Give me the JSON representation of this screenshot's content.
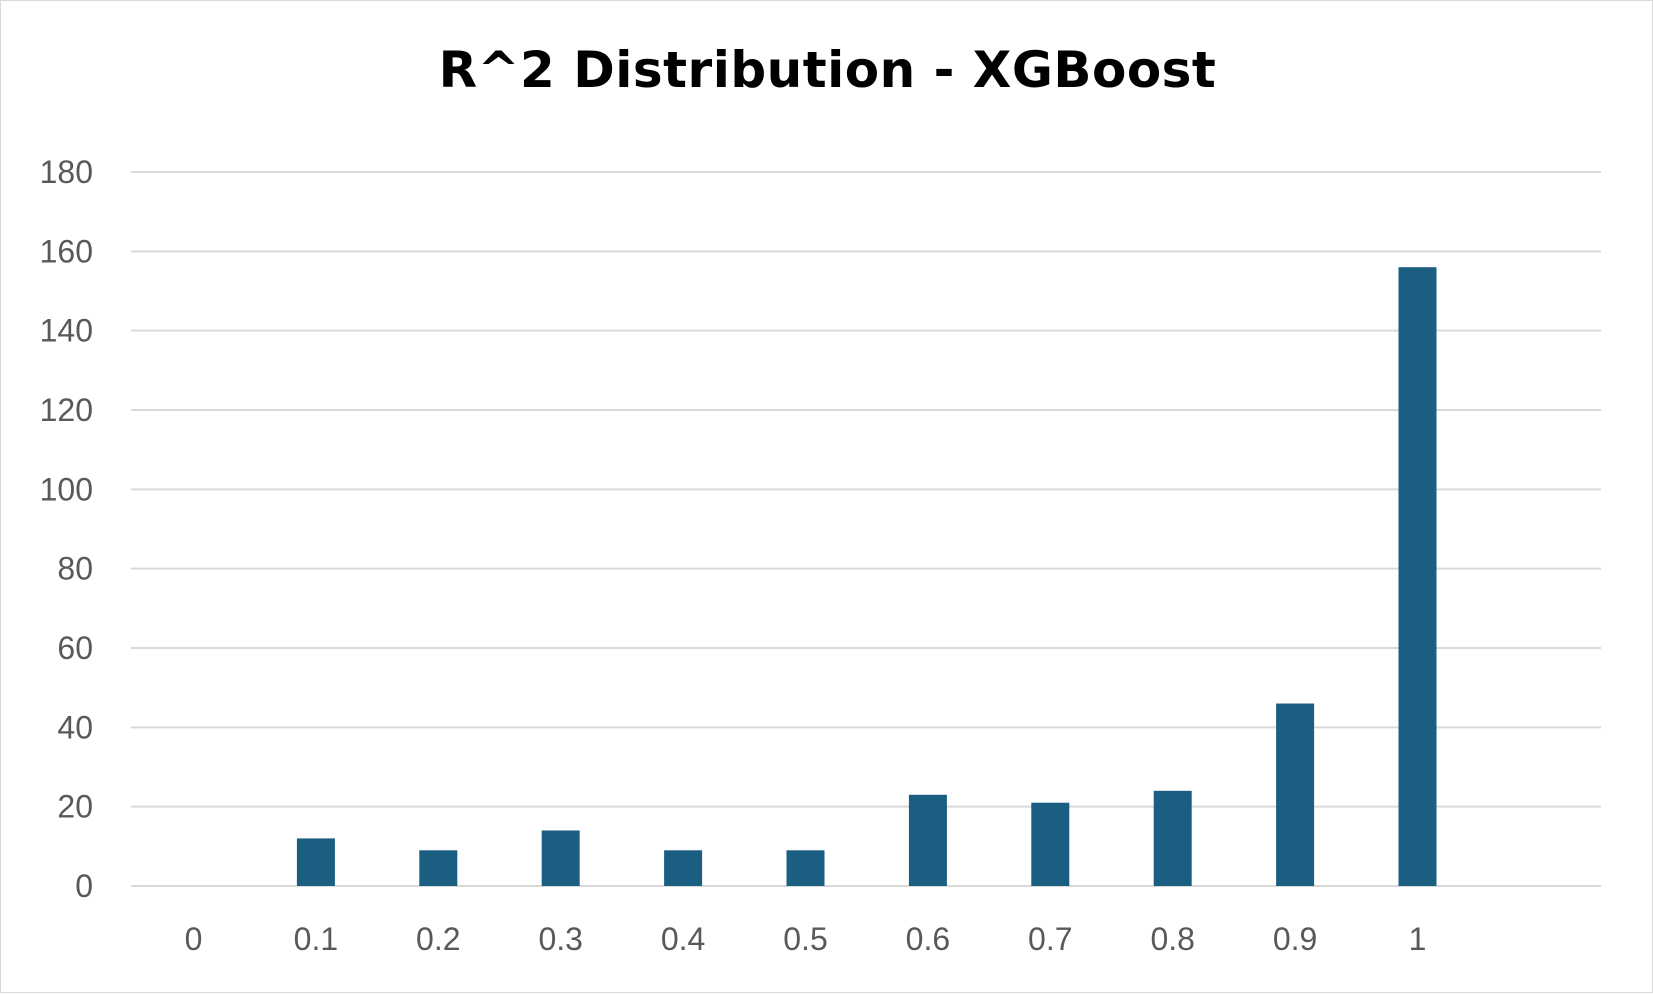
{
  "chart_data": {
    "type": "bar",
    "title": "R^2 Distribution - XGBoost",
    "xlabel": "",
    "ylabel": "",
    "categories": [
      "0",
      "0.1",
      "0.2",
      "0.3",
      "0.4",
      "0.5",
      "0.6",
      "0.7",
      "0.8",
      "0.9",
      "1"
    ],
    "values": [
      0,
      12,
      9,
      14,
      9,
      9,
      23,
      21,
      24,
      46,
      156
    ],
    "ylim": [
      0,
      180
    ],
    "yticks": [
      "0",
      "20",
      "40",
      "60",
      "80",
      "100",
      "120",
      "140",
      "160",
      "180"
    ],
    "grid": true,
    "legend": "none",
    "bar_color": "#1a5e82",
    "grid_color": "#d9d9d9"
  }
}
